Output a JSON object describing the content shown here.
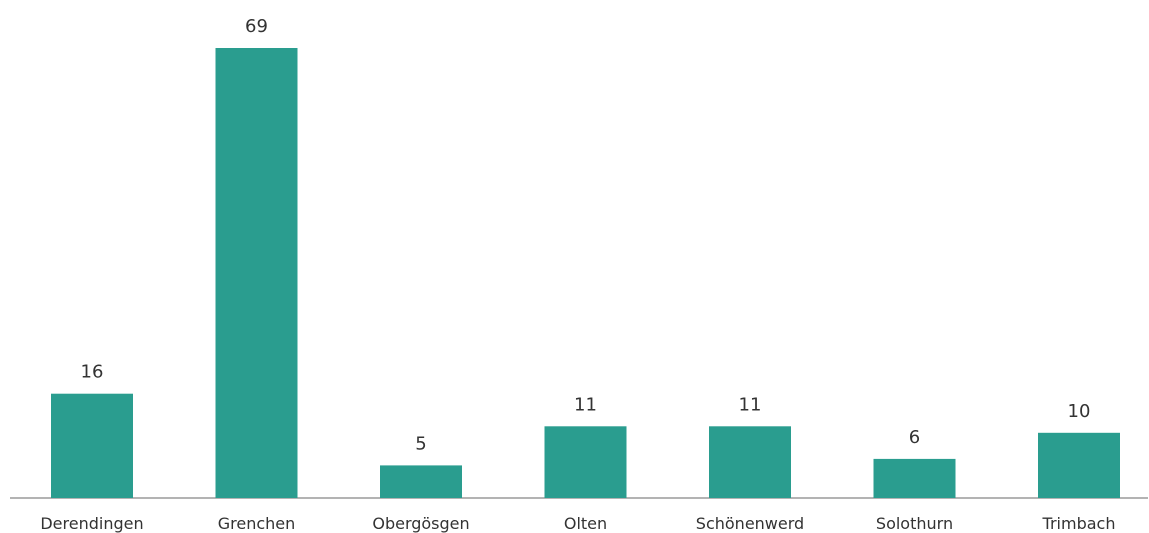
{
  "chart_data": {
    "type": "bar",
    "categories": [
      "Derendingen",
      "Grenchen",
      "Obergösgen",
      "Olten",
      "Schönenwerd",
      "Solothurn",
      "Trimbach"
    ],
    "values": [
      16,
      69,
      5,
      11,
      11,
      6,
      10
    ],
    "title": "",
    "xlabel": "",
    "ylabel": "",
    "ylim": [
      0,
      69
    ],
    "grid": false,
    "legend": "none",
    "bar_color": "#2a9d8f",
    "data_labels": true
  }
}
